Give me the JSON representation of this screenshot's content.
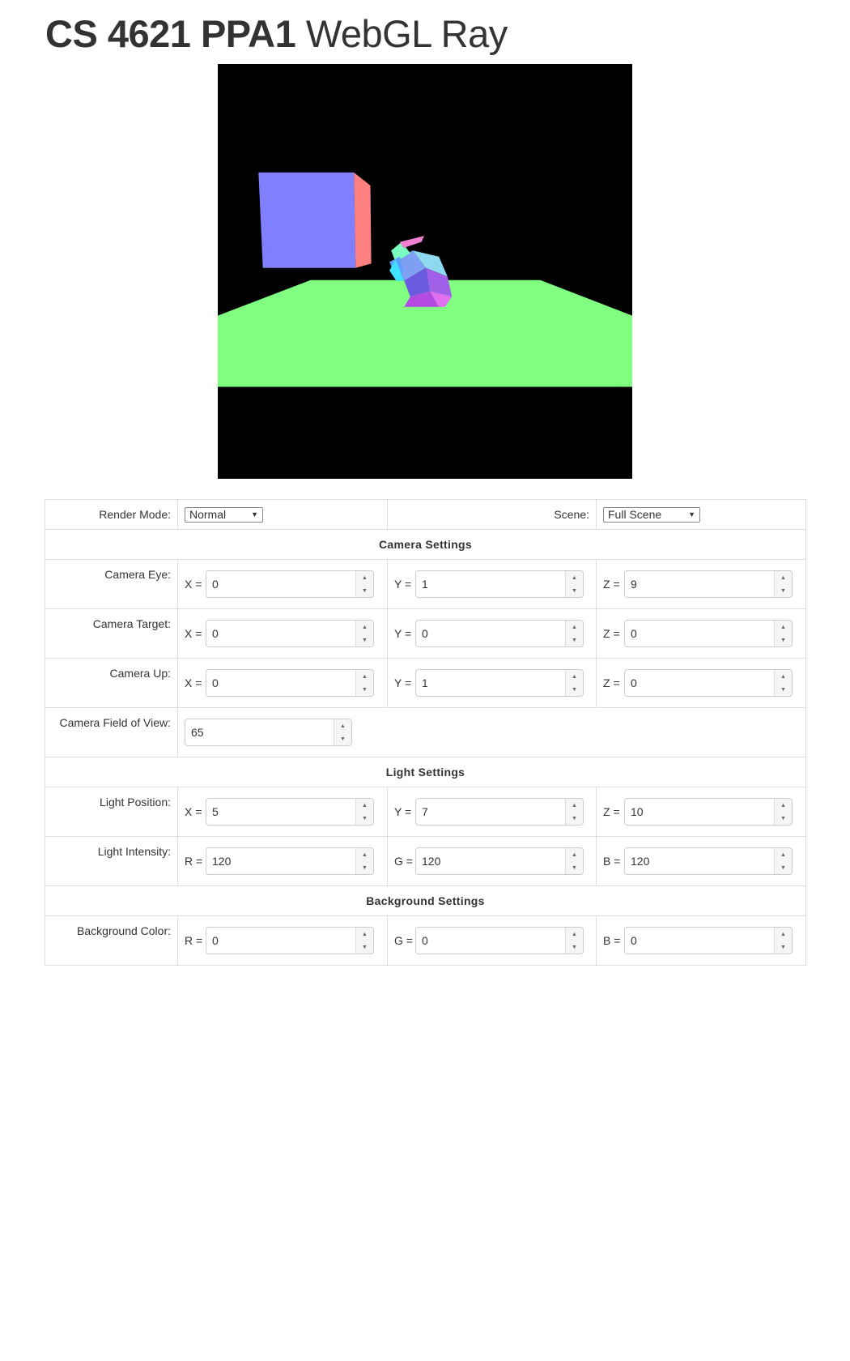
{
  "title": {
    "bold": "CS 4621 PPA1",
    "rest": "WebGL Ray"
  },
  "render_mode": {
    "label": "Render Mode:",
    "value": "Normal"
  },
  "scene": {
    "label": "Scene:",
    "value": "Full Scene"
  },
  "camera": {
    "header": "Camera Settings",
    "eye": {
      "label": "Camera Eye:",
      "x": "0",
      "y": "1",
      "z": "9"
    },
    "target": {
      "label": "Camera Target:",
      "x": "0",
      "y": "0",
      "z": "0"
    },
    "up": {
      "label": "Camera Up:",
      "x": "0",
      "y": "1",
      "z": "0"
    },
    "fov": {
      "label": "Camera Field of View:",
      "value": "65"
    }
  },
  "light": {
    "header": "Light Settings",
    "position": {
      "label": "Light Position:",
      "x": "5",
      "y": "7",
      "z": "10"
    },
    "intensity": {
      "label": "Light Intensity:",
      "r": "120",
      "g": "120",
      "b": "120"
    }
  },
  "background": {
    "header": "Background Settings",
    "color": {
      "label": "Background Color:",
      "r": "0",
      "g": "0",
      "b": "0"
    }
  },
  "axes": {
    "x": "X =",
    "y": "Y =",
    "z": "Z =",
    "r": "R =",
    "g": "G =",
    "b": "B ="
  },
  "colors": {
    "ground": "#80ff80",
    "cube_front": "#8080ff",
    "cube_side": "#ff8080",
    "canvas_bg": "#000000"
  }
}
